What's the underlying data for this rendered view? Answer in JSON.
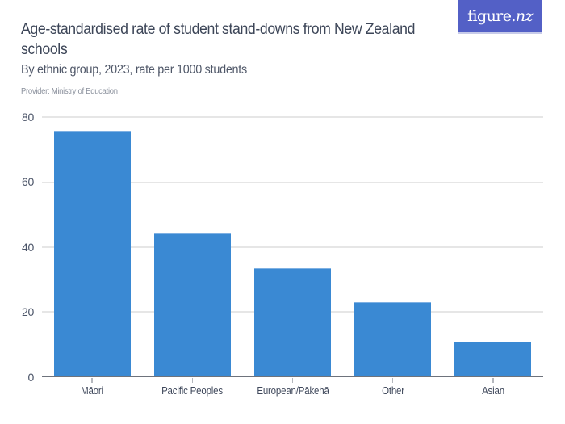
{
  "header": {
    "title": "Age-standardised rate of student stand-downs from New Zealand schools",
    "subtitle": "By ethnic group, 2023, rate per 1000 students",
    "provider": "Provider: Ministry of Education"
  },
  "logo": {
    "text_main": "figure.",
    "text_italic": "nz",
    "background": "#5360c6"
  },
  "chart_data": {
    "type": "bar",
    "title": "Age-standardised rate of student stand-downs from New Zealand schools",
    "subtitle": "By ethnic group, 2023, rate per 1000 students",
    "source": "Provider: Ministry of Education",
    "xlabel": "",
    "ylabel": "",
    "categories": [
      "Māori",
      "Pacific Peoples",
      "European/Pākehā",
      "Other",
      "Asian"
    ],
    "values": [
      75.7,
      44.1,
      33.4,
      23.1,
      10.7
    ],
    "ylim": [
      0,
      80
    ],
    "yticks": [
      "0",
      "20",
      "40",
      "60",
      "80"
    ],
    "grid": true,
    "legend": "none",
    "bar_color": "#3a89d3"
  }
}
